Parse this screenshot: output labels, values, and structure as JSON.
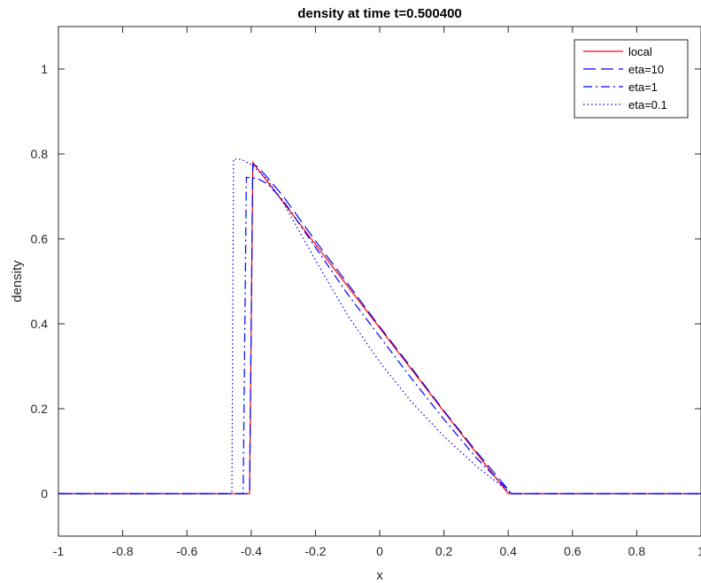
{
  "chart_data": {
    "type": "line",
    "title": "density at time t=0.500400",
    "xlabel": "x",
    "ylabel": "density",
    "xlim": [
      -1,
      1
    ],
    "ylim": [
      -0.1,
      1.1
    ],
    "xticks": [
      -1,
      -0.8,
      -0.6,
      -0.4,
      -0.2,
      0,
      0.2,
      0.4,
      0.6,
      0.8,
      1
    ],
    "xtick_labels": [
      "-1",
      "-0.8",
      "-0.6",
      "-0.4",
      "-0.2",
      "0",
      "0.2",
      "0.4",
      "0.6",
      "0.8",
      "1"
    ],
    "yticks": [
      0,
      0.2,
      0.4,
      0.6,
      0.8,
      1
    ],
    "ytick_labels": [
      "0",
      "0.2",
      "0.4",
      "0.6",
      "0.8",
      "1"
    ],
    "grid": false,
    "legend_position": "top-right",
    "series": [
      {
        "name": "local",
        "color": "#ff0000",
        "style": "solid",
        "x": [
          -1,
          -0.405,
          -0.395,
          -0.2,
          0,
          0.2,
          0.4,
          0.41,
          1
        ],
        "y": [
          0,
          0,
          0.78,
          0.587,
          0.39,
          0.193,
          0.0,
          0,
          0
        ]
      },
      {
        "name": "eta=10",
        "color": "#0000ff",
        "style": "dashed",
        "x": [
          -1,
          -0.405,
          -0.395,
          -0.38,
          -0.35,
          -0.3,
          -0.2,
          -0.1,
          0,
          0.1,
          0.2,
          0.3,
          0.41,
          1
        ],
        "y": [
          0,
          0,
          0.775,
          0.77,
          0.745,
          0.7,
          0.595,
          0.495,
          0.393,
          0.295,
          0.195,
          0.1,
          0,
          0
        ]
      },
      {
        "name": "eta=1",
        "color": "#0000ff",
        "style": "dashdot",
        "x": [
          -1,
          -0.425,
          -0.415,
          -0.38,
          -0.35,
          -0.3,
          -0.2,
          -0.1,
          0,
          0.1,
          0.2,
          0.3,
          0.41,
          1
        ],
        "y": [
          0,
          0,
          0.745,
          0.742,
          0.73,
          0.69,
          0.58,
          0.47,
          0.37,
          0.27,
          0.175,
          0.085,
          0,
          0
        ]
      },
      {
        "name": "eta=0.1",
        "color": "#0000ff",
        "style": "dotted",
        "x": [
          -1,
          -0.46,
          -0.455,
          -0.43,
          -0.4,
          -0.35,
          -0.3,
          -0.2,
          -0.1,
          0,
          0.1,
          0.2,
          0.3,
          0.41,
          1
        ],
        "y": [
          0,
          0,
          0.788,
          0.787,
          0.775,
          0.74,
          0.685,
          0.55,
          0.42,
          0.31,
          0.215,
          0.135,
          0.065,
          0,
          0
        ]
      }
    ]
  }
}
